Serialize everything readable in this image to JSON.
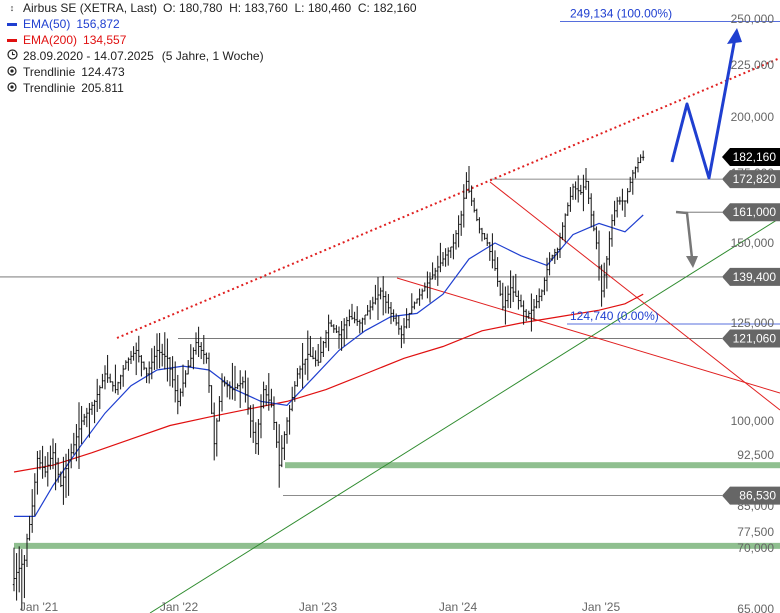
{
  "legend": {
    "main": {
      "name": "Airbus SE (XETRA, Last)",
      "ohlc": "O: 180,780  H: 183,760  L: 180,460  C: 182,160"
    },
    "ema50": {
      "name": "EMA(50)",
      "value": "156,872",
      "color": "#1f3fd0"
    },
    "ema200": {
      "name": "EMA(200)",
      "value": "134,557",
      "color": "#e01010"
    },
    "range": {
      "dates": "28.09.2020 - 14.07.2025",
      "interval": "(5 Jahre, 1 Woche)",
      "icon": "clock-icon"
    },
    "trend1": {
      "name": "Trendlinie",
      "value": "124.473",
      "icon": "target-icon"
    },
    "trend2": {
      "name": "Trendlinie",
      "value": "205.811",
      "icon": "target-icon"
    }
  },
  "chart_data": {
    "type": "candlestick",
    "instrument": "Airbus SE (XETRA, Last)",
    "interval": "1 Woche",
    "x_range": [
      "2020-09-28",
      "2025-07-14"
    ],
    "y_range": [
      65,
      255
    ],
    "x_ticks": [
      "Jan '21",
      "Jan '22",
      "Jan '23",
      "Jan '24",
      "Jan '25"
    ],
    "y_ticks": [
      "65,000",
      "70,000",
      "77,500",
      "85,000",
      "92,500",
      "100,000",
      "125,000",
      "150,000",
      "175,000",
      "200,000",
      "225,000",
      "250,000"
    ],
    "grid": false,
    "price_path": [
      {
        "t": 0,
        "v": 67
      },
      {
        "t": 2,
        "v": 68
      },
      {
        "t": 5,
        "v": 69
      },
      {
        "t": 8,
        "v": 85
      },
      {
        "t": 10,
        "v": 92
      },
      {
        "t": 13,
        "v": 90
      },
      {
        "t": 16,
        "v": 93
      },
      {
        "t": 19,
        "v": 88
      },
      {
        "t": 23,
        "v": 93
      },
      {
        "t": 27,
        "v": 100
      },
      {
        "t": 32,
        "v": 105
      },
      {
        "t": 36,
        "v": 112
      },
      {
        "t": 40,
        "v": 108
      },
      {
        "t": 44,
        "v": 115
      },
      {
        "t": 48,
        "v": 118
      },
      {
        "t": 52,
        "v": 112
      },
      {
        "t": 56,
        "v": 118
      },
      {
        "t": 60,
        "v": 116
      },
      {
        "t": 64,
        "v": 105
      },
      {
        "t": 67,
        "v": 112
      },
      {
        "t": 71,
        "v": 120
      },
      {
        "t": 75,
        "v": 116
      },
      {
        "t": 78,
        "v": 95
      },
      {
        "t": 81,
        "v": 110
      },
      {
        "t": 85,
        "v": 108
      },
      {
        "t": 89,
        "v": 110
      },
      {
        "t": 92,
        "v": 100
      },
      {
        "t": 94,
        "v": 95
      },
      {
        "t": 97,
        "v": 108
      },
      {
        "t": 100,
        "v": 104
      },
      {
        "t": 103,
        "v": 91
      },
      {
        "t": 106,
        "v": 100
      },
      {
        "t": 110,
        "v": 112
      },
      {
        "t": 114,
        "v": 117
      },
      {
        "t": 118,
        "v": 115
      },
      {
        "t": 122,
        "v": 125
      },
      {
        "t": 126,
        "v": 122
      },
      {
        "t": 130,
        "v": 127
      },
      {
        "t": 134,
        "v": 125
      },
      {
        "t": 138,
        "v": 130
      },
      {
        "t": 142,
        "v": 135
      },
      {
        "t": 146,
        "v": 128
      },
      {
        "t": 150,
        "v": 122
      },
      {
        "t": 154,
        "v": 130
      },
      {
        "t": 158,
        "v": 135
      },
      {
        "t": 162,
        "v": 140
      },
      {
        "t": 166,
        "v": 145
      },
      {
        "t": 170,
        "v": 150
      },
      {
        "t": 173,
        "v": 160
      },
      {
        "t": 175,
        "v": 172
      },
      {
        "t": 177,
        "v": 165
      },
      {
        "t": 180,
        "v": 155
      },
      {
        "t": 183,
        "v": 150
      },
      {
        "t": 186,
        "v": 142
      },
      {
        "t": 189,
        "v": 130
      },
      {
        "t": 192,
        "v": 136
      },
      {
        "t": 195,
        "v": 132
      },
      {
        "t": 198,
        "v": 127
      },
      {
        "t": 201,
        "v": 130
      },
      {
        "t": 204,
        "v": 135
      },
      {
        "t": 207,
        "v": 145
      },
      {
        "t": 210,
        "v": 148
      },
      {
        "t": 213,
        "v": 160
      },
      {
        "t": 216,
        "v": 170
      },
      {
        "t": 219,
        "v": 168
      },
      {
        "t": 221,
        "v": 172
      },
      {
        "t": 223,
        "v": 160
      },
      {
        "t": 225,
        "v": 150
      },
      {
        "t": 227,
        "v": 135
      },
      {
        "t": 229,
        "v": 145
      },
      {
        "t": 231,
        "v": 158
      },
      {
        "t": 233,
        "v": 165
      },
      {
        "t": 236,
        "v": 165
      },
      {
        "t": 239,
        "v": 175
      },
      {
        "t": 242,
        "v": 182
      }
    ],
    "ema50_path": [
      {
        "t": 0,
        "v": 82
      },
      {
        "t": 8,
        "v": 82
      },
      {
        "t": 15,
        "v": 88
      },
      {
        "t": 25,
        "v": 94
      },
      {
        "t": 35,
        "v": 102
      },
      {
        "t": 45,
        "v": 109
      },
      {
        "t": 55,
        "v": 113
      },
      {
        "t": 65,
        "v": 114
      },
      {
        "t": 75,
        "v": 113
      },
      {
        "t": 85,
        "v": 108
      },
      {
        "t": 95,
        "v": 105
      },
      {
        "t": 105,
        "v": 104
      },
      {
        "t": 115,
        "v": 111
      },
      {
        "t": 125,
        "v": 118
      },
      {
        "t": 135,
        "v": 123
      },
      {
        "t": 145,
        "v": 127
      },
      {
        "t": 155,
        "v": 128
      },
      {
        "t": 165,
        "v": 134
      },
      {
        "t": 175,
        "v": 145
      },
      {
        "t": 185,
        "v": 150
      },
      {
        "t": 195,
        "v": 146
      },
      {
        "t": 205,
        "v": 143
      },
      {
        "t": 215,
        "v": 153
      },
      {
        "t": 225,
        "v": 157
      },
      {
        "t": 235,
        "v": 154
      },
      {
        "t": 242,
        "v": 160
      }
    ],
    "ema200_path": [
      {
        "t": 0,
        "v": 90
      },
      {
        "t": 15,
        "v": 91
      },
      {
        "t": 30,
        "v": 93
      },
      {
        "t": 45,
        "v": 96
      },
      {
        "t": 60,
        "v": 99
      },
      {
        "t": 75,
        "v": 101
      },
      {
        "t": 90,
        "v": 103
      },
      {
        "t": 105,
        "v": 105
      },
      {
        "t": 120,
        "v": 108
      },
      {
        "t": 135,
        "v": 112
      },
      {
        "t": 150,
        "v": 116
      },
      {
        "t": 165,
        "v": 119
      },
      {
        "t": 180,
        "v": 123
      },
      {
        "t": 195,
        "v": 125
      },
      {
        "t": 210,
        "v": 127
      },
      {
        "t": 225,
        "v": 129
      },
      {
        "t": 235,
        "v": 131
      },
      {
        "t": 242,
        "v": 134
      }
    ],
    "levels": [
      {
        "label": "182,160",
        "value": 182.16,
        "style": "last"
      },
      {
        "label": "172,820",
        "value": 172.82,
        "style": "gray"
      },
      {
        "label": "161,000",
        "value": 161.0,
        "style": "gray"
      },
      {
        "label": "139,400",
        "value": 139.4,
        "style": "gray"
      },
      {
        "label": "121,060",
        "value": 121.06,
        "style": "gray"
      },
      {
        "label": "86,530",
        "value": 86.53,
        "style": "gray"
      }
    ],
    "fib_labels": [
      {
        "label": "249,134 (100.00%)",
        "value": 249.134
      },
      {
        "label": "124,740 (0.00%)",
        "value": 124.74
      }
    ],
    "support_zones": [
      {
        "value": 91.0
      },
      {
        "value": 71.0
      }
    ],
    "colors": {
      "ema50": "#1f3fd0",
      "ema200": "#e01010",
      "trend_up": "#2e8b2e",
      "trend_resist": "#e02020",
      "projection": "#1f3fd0",
      "alt_projection": "#777777",
      "zone": "#8fbf8f"
    }
  }
}
